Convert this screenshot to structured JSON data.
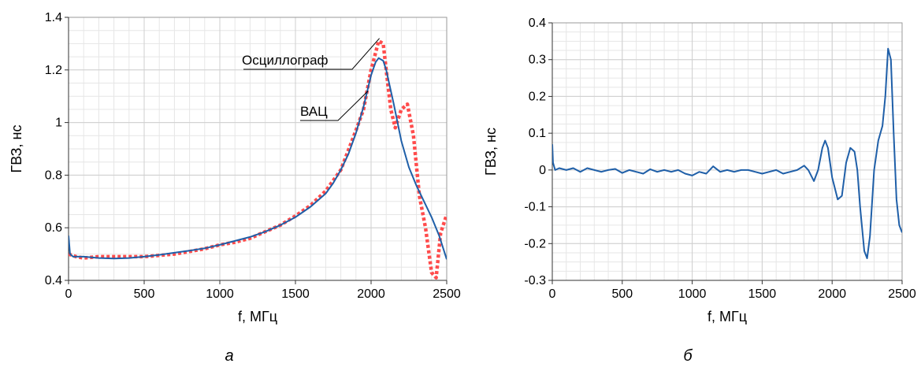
{
  "chart_data": [
    {
      "type": "line",
      "panel_label": "а",
      "xlabel": "f, МГц",
      "ylabel": "ГВЗ, нс",
      "xlim": [
        0,
        2500
      ],
      "ylim": [
        0.4,
        1.4
      ],
      "xticks": [
        "0",
        "500",
        "1000",
        "1500",
        "2000",
        "2500"
      ],
      "yticks": [
        "0.4",
        "0.6",
        "0.8",
        "1",
        "1.2",
        "1.4"
      ],
      "grid": true,
      "series": [
        {
          "name": "ВАЦ",
          "color": "#1f5fa8",
          "style": "solid",
          "x": [
            0,
            10,
            30,
            100,
            200,
            300,
            400,
            500,
            600,
            700,
            800,
            900,
            1000,
            1100,
            1200,
            1300,
            1400,
            1500,
            1600,
            1700,
            1750,
            1800,
            1850,
            1900,
            1950,
            2000,
            2030,
            2050,
            2080,
            2100,
            2150,
            2200,
            2250,
            2300,
            2350,
            2400,
            2450,
            2500
          ],
          "y": [
            0.57,
            0.5,
            0.49,
            0.49,
            0.485,
            0.483,
            0.485,
            0.49,
            0.497,
            0.505,
            0.513,
            0.522,
            0.535,
            0.55,
            0.565,
            0.585,
            0.61,
            0.64,
            0.68,
            0.73,
            0.77,
            0.82,
            0.88,
            0.96,
            1.06,
            1.18,
            1.23,
            1.245,
            1.235,
            1.2,
            1.07,
            0.93,
            0.83,
            0.76,
            0.7,
            0.64,
            0.57,
            0.48
          ]
        },
        {
          "name": "Осциллограф",
          "color": "#ff4c4c",
          "style": "dotted",
          "x": [
            0,
            50,
            100,
            200,
            300,
            400,
            500,
            600,
            700,
            800,
            900,
            1000,
            1100,
            1200,
            1300,
            1400,
            1500,
            1600,
            1700,
            1800,
            1900,
            1950,
            2000,
            2050,
            2080,
            2100,
            2130,
            2160,
            2200,
            2240,
            2280,
            2320,
            2360,
            2400,
            2430,
            2460,
            2500
          ],
          "y": [
            0.5,
            0.49,
            0.485,
            0.49,
            0.49,
            0.49,
            0.49,
            0.495,
            0.5,
            0.51,
            0.52,
            0.535,
            0.545,
            0.56,
            0.585,
            0.61,
            0.645,
            0.685,
            0.74,
            0.82,
            0.97,
            1.05,
            1.2,
            1.31,
            1.3,
            1.2,
            1.05,
            0.98,
            1.05,
            1.07,
            0.95,
            0.72,
            0.6,
            0.43,
            0.41,
            0.58,
            0.65
          ]
        }
      ],
      "annotations": [
        "Осциллограф",
        "ВАЦ"
      ]
    },
    {
      "type": "line",
      "panel_label": "б",
      "xlabel": "f, МГц",
      "ylabel": "ГВЗ, нс",
      "xlim": [
        0,
        2500
      ],
      "ylim": [
        -0.3,
        0.4
      ],
      "xticks": [
        "0",
        "500",
        "1000",
        "1500",
        "2000",
        "2500"
      ],
      "yticks": [
        "-0.3",
        "-0.2",
        "-0.1",
        "0",
        "0.1",
        "0.2",
        "0.3",
        "0.4"
      ],
      "grid": true,
      "series": [
        {
          "color": "#1f5fa8",
          "style": "solid",
          "x": [
            0,
            5,
            20,
            50,
            100,
            150,
            200,
            250,
            300,
            350,
            400,
            450,
            500,
            550,
            600,
            650,
            700,
            750,
            800,
            850,
            900,
            950,
            1000,
            1050,
            1100,
            1150,
            1200,
            1250,
            1300,
            1350,
            1400,
            1450,
            1500,
            1550,
            1600,
            1650,
            1700,
            1750,
            1800,
            1830,
            1870,
            1900,
            1930,
            1950,
            1970,
            2000,
            2040,
            2070,
            2100,
            2130,
            2160,
            2180,
            2200,
            2230,
            2250,
            2270,
            2300,
            2330,
            2360,
            2380,
            2400,
            2420,
            2440,
            2460,
            2480,
            2500
          ],
          "y": [
            0.07,
            0.02,
            0.0,
            0.005,
            0.0,
            0.005,
            -0.005,
            0.005,
            0.0,
            -0.005,
            0.0,
            0.003,
            -0.008,
            0.0,
            -0.005,
            -0.01,
            0.002,
            -0.005,
            0.0,
            -0.005,
            0.0,
            -0.01,
            -0.015,
            -0.005,
            -0.01,
            0.01,
            -0.005,
            0.0,
            -0.005,
            0.0,
            0.0,
            -0.005,
            -0.01,
            -0.005,
            0.0,
            -0.01,
            -0.005,
            0.0,
            0.012,
            0.0,
            -0.03,
            0.0,
            0.06,
            0.08,
            0.06,
            -0.02,
            -0.08,
            -0.07,
            0.02,
            0.06,
            0.05,
            0.0,
            -0.1,
            -0.22,
            -0.24,
            -0.18,
            0.0,
            0.08,
            0.12,
            0.2,
            0.33,
            0.3,
            0.1,
            -0.08,
            -0.15,
            -0.17
          ]
        }
      ]
    }
  ]
}
